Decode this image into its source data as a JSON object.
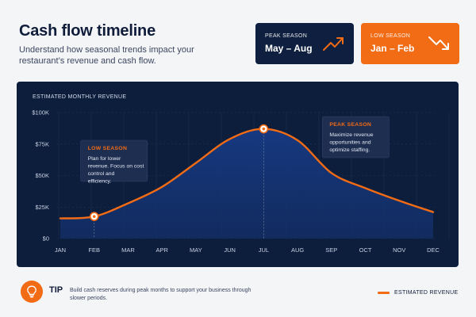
{
  "header": {
    "title": "Cash flow timeline",
    "subtitle": "Understand how seasonal trends impact your restaurant’s revenue and cash flow."
  },
  "cards": {
    "peak": {
      "title": "PEAK SEASON",
      "value": "May – Aug",
      "icon": "trend-up-icon",
      "color": "#0e1f3f"
    },
    "low": {
      "title": "LOW SEASON",
      "value": "Jan – Feb",
      "icon": "trend-down-icon",
      "color": "#f26b15"
    }
  },
  "chart_data": {
    "type": "area",
    "title": "ESTIMATED MONTHLY REVENUE",
    "categories": [
      "JAN",
      "FEB",
      "MAR",
      "APR",
      "MAY",
      "JUN",
      "JUL",
      "AUG",
      "SEP",
      "OCT",
      "NOV",
      "DEC"
    ],
    "series": [
      {
        "name": "ESTIMATED REVENUE",
        "values": [
          16000,
          17500,
          28000,
          41000,
          60000,
          79000,
          87000,
          78000,
          52000,
          40000,
          30000,
          21000
        ],
        "color": "#f26b15"
      }
    ],
    "y_ticks": [
      "$0",
      "$25K",
      "$50K",
      "$75K",
      "$100K"
    ],
    "ylim": [
      0,
      100000
    ],
    "grid": true,
    "legend": "bottom-right",
    "annotations": [
      {
        "category": "FEB",
        "title": "LOW SEASON",
        "text": "Plan for lower revenue. Focus on cost control and efficiency."
      },
      {
        "category": "JUL",
        "title": "PEAK SEASON",
        "text": "Maximize revenue opportunities and optimize staffing."
      }
    ]
  },
  "tip": {
    "label": "TIP",
    "text": "Build cash reserves during peak months to support your business through slower periods.",
    "icon": "lightbulb-icon"
  },
  "legend": {
    "label": "ESTIMATED REVENUE",
    "color": "#f26b15"
  }
}
